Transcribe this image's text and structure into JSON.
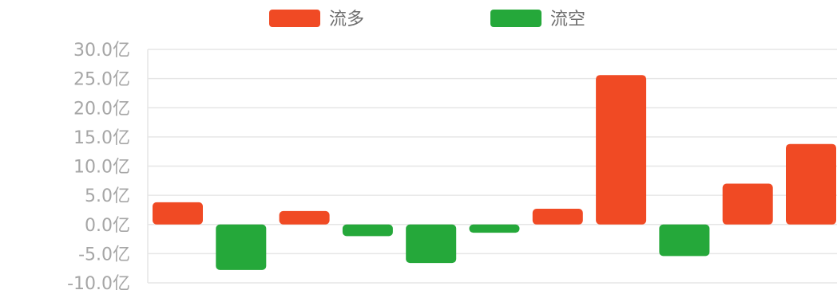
{
  "colors": {
    "inflow": "#f04a24",
    "outflow": "#25a83a"
  },
  "chart_data": {
    "type": "bar",
    "series": [
      {
        "name": "流多",
        "color": "#f04a24"
      },
      {
        "name": "流空",
        "color": "#25a83a"
      }
    ],
    "values": [
      3.8,
      -7.8,
      2.3,
      -2.0,
      -6.6,
      -1.4,
      2.7,
      25.6,
      -5.4,
      7.0,
      13.8
    ],
    "ylim": [
      -10,
      30
    ],
    "yticks": [
      30,
      25,
      20,
      15,
      10,
      5,
      0,
      -5,
      -10
    ],
    "ytick_labels": [
      "30.0亿",
      "25.0亿",
      "20.0亿",
      "15.0亿",
      "10.0亿",
      "5.0亿",
      "0.0亿",
      "-5.0亿",
      "-10.0亿"
    ],
    "grid": true,
    "legend": "top"
  }
}
